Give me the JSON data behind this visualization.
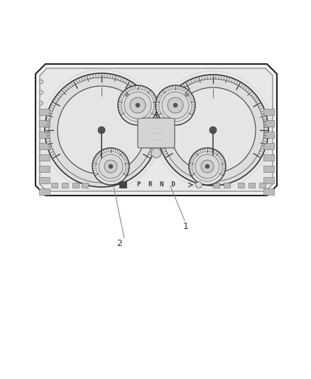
{
  "bg_color": "#ffffff",
  "panel_facecolor": "#f2f2f2",
  "panel_edgecolor": "#222222",
  "inner_facecolor": "#e8e8e8",
  "gauge_face": "#e8e8e8",
  "gauge_edge": "#333333",
  "tick_color": "#333333",
  "needle_color": "#444444",
  "label1_text": "1",
  "label2_text": "2",
  "icon_color": "#cccccc",
  "icon_edge": "#555555",
  "prnd_text": "P  R  N  D",
  "prnd_color": "#333333",
  "line_color": "#888888",
  "dot_color": "#555555"
}
